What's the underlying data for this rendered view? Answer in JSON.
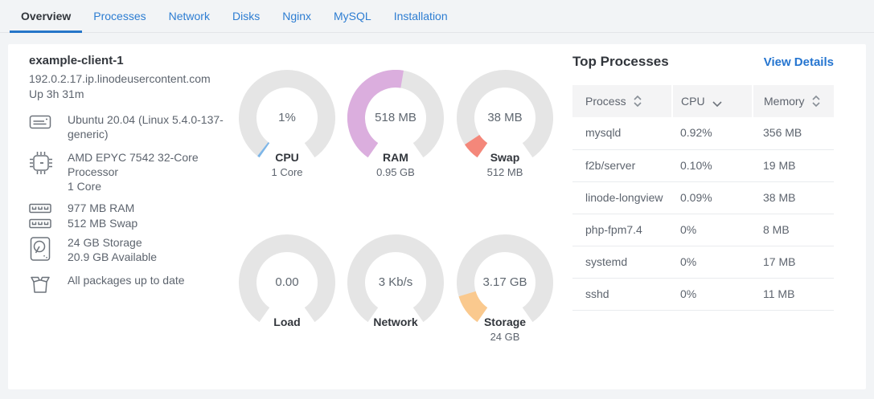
{
  "tabs": {
    "items": [
      {
        "label": "Overview",
        "active": true
      },
      {
        "label": "Processes",
        "active": false
      },
      {
        "label": "Network",
        "active": false
      },
      {
        "label": "Disks",
        "active": false
      },
      {
        "label": "Nginx",
        "active": false
      },
      {
        "label": "MySQL",
        "active": false
      },
      {
        "label": "Installation",
        "active": false
      }
    ]
  },
  "client": {
    "name": "example-client-1",
    "hostname": "192.0.2.17.ip.linodeusercontent.com",
    "uptime": "Up 3h 31m",
    "specs": [
      {
        "icon": "os-icon",
        "lines": [
          "Ubuntu 20.04 (Linux 5.4.0-137-generic)"
        ]
      },
      {
        "icon": "cpu-icon",
        "lines": [
          "AMD EPYC 7542 32-Core Processor",
          "1 Core"
        ]
      },
      {
        "icon": "ram-icon",
        "lines": [
          "977 MB RAM",
          "512 MB Swap"
        ]
      },
      {
        "icon": "disk-icon",
        "lines": [
          "24 GB Storage",
          "20.9 GB Available"
        ]
      },
      {
        "icon": "package-icon",
        "lines": [
          "All packages up to date"
        ]
      }
    ]
  },
  "chart_data": {
    "type": "gauge",
    "arc_start_deg": 215,
    "arc_span_deg": 290,
    "track_color": "#e5e5e5",
    "gauges": [
      {
        "id": "cpu",
        "value": "1%",
        "label": "CPU",
        "sublabel": "1 Core",
        "fraction": 0.01,
        "color": "#7db6e8"
      },
      {
        "id": "ram",
        "value": "518 MB",
        "label": "RAM",
        "sublabel": "0.95 GB",
        "fraction": 0.533,
        "color": "#dbaede"
      },
      {
        "id": "swap",
        "value": "38 MB",
        "label": "Swap",
        "sublabel": "512 MB",
        "fraction": 0.074,
        "color": "#f4877a"
      },
      {
        "id": "load",
        "value": "0.00",
        "label": "Load",
        "sublabel": "",
        "fraction": 0,
        "color": ""
      },
      {
        "id": "network",
        "value": "3 Kb/s",
        "label": "Network",
        "sublabel": "",
        "fraction": 0,
        "color": ""
      },
      {
        "id": "storage",
        "value": "3.17 GB",
        "label": "Storage",
        "sublabel": "24 GB",
        "fraction": 0.132,
        "color": "#fac98e"
      }
    ]
  },
  "top_processes": {
    "title": "Top Processes",
    "view_details": "View Details",
    "columns": [
      {
        "label": "Process",
        "sort": "both"
      },
      {
        "label": "CPU",
        "sort": "desc"
      },
      {
        "label": "Memory",
        "sort": "both"
      }
    ],
    "rows": [
      {
        "process": "mysqld",
        "cpu": "0.92%",
        "memory": "356 MB"
      },
      {
        "process": "f2b/server",
        "cpu": "0.10%",
        "memory": "19 MB"
      },
      {
        "process": "linode-longview",
        "cpu": "0.09%",
        "memory": "38 MB"
      },
      {
        "process": "php-fpm7.4",
        "cpu": "0%",
        "memory": "8 MB"
      },
      {
        "process": "systemd",
        "cpu": "0%",
        "memory": "17 MB"
      },
      {
        "process": "sshd",
        "cpu": "0%",
        "memory": "11 MB"
      }
    ]
  },
  "colors": {
    "accent_blue": "#2d7dd2",
    "active_underline": "#2575c8",
    "header_bg": "#f4f4f5",
    "text_dark": "#32363c",
    "text_gray": "#5d646e"
  }
}
